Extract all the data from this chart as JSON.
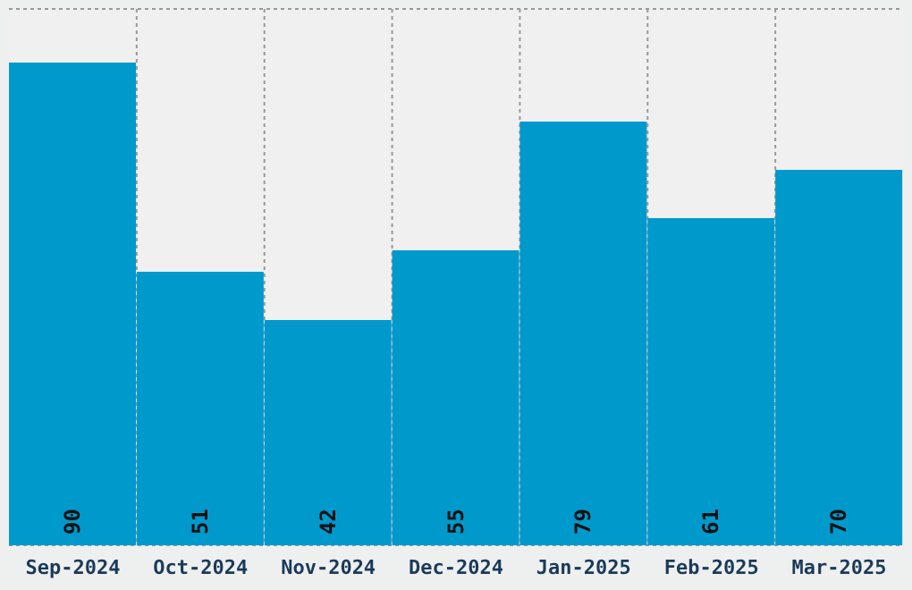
{
  "chart_data": {
    "type": "bar",
    "categories": [
      "Sep-2024",
      "Oct-2024",
      "Nov-2024",
      "Dec-2024",
      "Jan-2025",
      "Feb-2025",
      "Mar-2025"
    ],
    "values": [
      90,
      51,
      42,
      55,
      79,
      61,
      70
    ],
    "color": "#0099cc",
    "data_labels": true,
    "ylim": [
      0,
      100
    ],
    "tick_labels": "x",
    "grid": true
  }
}
